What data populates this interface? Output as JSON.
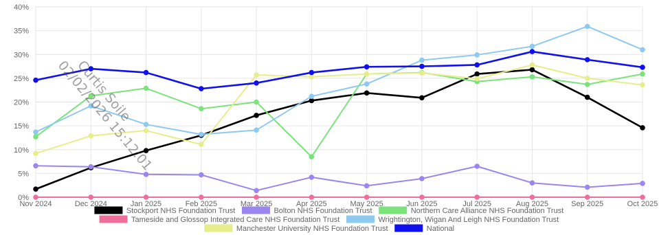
{
  "chart_data": {
    "type": "line",
    "x": [
      "Nov 2024",
      "Dec 2024",
      "Jan 2025",
      "Feb 2025",
      "Mar 2025",
      "Apr 2025",
      "May 2025",
      "Jun 2025",
      "Jul 2025",
      "Aug 2025",
      "Sep 2025",
      "Oct 2025"
    ],
    "y_ticks": [
      "0%",
      "5%",
      "10%",
      "15%",
      "20%",
      "25%",
      "30%",
      "35%",
      "40%"
    ],
    "ylim": [
      0,
      40
    ],
    "y_unit": "%",
    "grid": true,
    "legend_position": "bottom",
    "series": [
      {
        "name": "Stockport NHS Foundation Trust",
        "color": "#000000",
        "values": [
          1.7,
          6.2,
          9.8,
          13.0,
          17.2,
          20.3,
          21.9,
          20.9,
          25.9,
          26.8,
          21.0,
          14.6
        ]
      },
      {
        "name": "Bolton NHS Foundation Trust",
        "color": "#9b85ee",
        "values": [
          6.6,
          6.4,
          4.8,
          4.7,
          1.4,
          4.2,
          2.4,
          3.9,
          6.5,
          3.0,
          2.1,
          2.9
        ]
      },
      {
        "name": "Northern Care Alliance NHS Foundation Trust",
        "color": "#7be37b",
        "values": [
          12.7,
          21.3,
          22.9,
          18.6,
          20.0,
          8.5,
          25.9,
          26.2,
          24.3,
          25.3,
          23.7,
          25.9
        ]
      },
      {
        "name": "Tameside and Glossop Integrated Care NHS Foundation Trust",
        "color": "#ee6f9a",
        "values": [
          0,
          0,
          0,
          0,
          0,
          0,
          0,
          0,
          0,
          0,
          0,
          0
        ]
      },
      {
        "name": "Wrightington, Wigan And Leigh NHS Foundation Trust",
        "color": "#8ec9f0",
        "values": [
          13.7,
          19.2,
          15.3,
          13.2,
          14.1,
          21.2,
          23.8,
          28.8,
          29.9,
          31.7,
          35.9,
          31.0
        ]
      },
      {
        "name": "Manchester University NHS Foundation Trust",
        "color": "#e6ee8c",
        "values": [
          9.2,
          12.9,
          14.0,
          11.1,
          25.7,
          25.3,
          25.9,
          26.1,
          24.9,
          27.8,
          25.0,
          23.6
        ]
      },
      {
        "name": "National",
        "color": "#1010ee",
        "values": [
          24.6,
          27.0,
          26.2,
          22.8,
          24.0,
          26.2,
          27.4,
          27.5,
          27.8,
          30.6,
          28.9,
          27.3
        ]
      }
    ]
  },
  "watermark": {
    "line1": "Curtis Soile",
    "line2": "02/02/2026 15:12:01"
  }
}
